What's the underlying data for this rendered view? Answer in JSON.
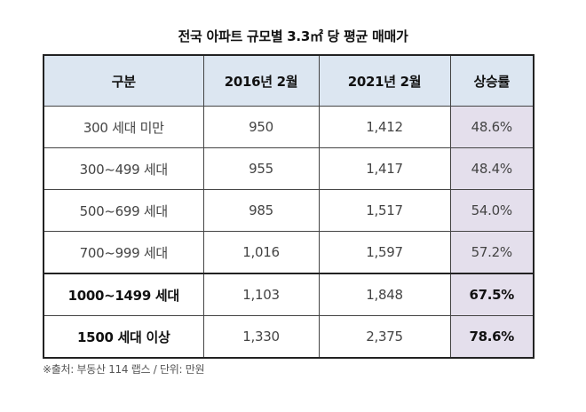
{
  "title": "전국 아파트 규모별 3.3㎡ 당 평균 매매가",
  "table": {
    "headers": [
      "구분",
      "2016년 2월",
      "2021년 2월",
      "상승률"
    ],
    "rows": [
      {
        "category": "300 세대 미만",
        "feb2016": "950",
        "feb2021": "1,412",
        "rate": "48.6%",
        "bold": false
      },
      {
        "category": "300~499 세대",
        "feb2016": "955",
        "feb2021": "1,417",
        "rate": "48.4%",
        "bold": false
      },
      {
        "category": "500~699 세대",
        "feb2016": "985",
        "feb2021": "1,517",
        "rate": "54.0%",
        "bold": false
      },
      {
        "category": "700~999 세대",
        "feb2016": "1,016",
        "feb2021": "1,597",
        "rate": "57.2%",
        "bold": false
      },
      {
        "category": "1000~1499 세대",
        "feb2016": "1,103",
        "feb2021": "1,848",
        "rate": "67.5%",
        "bold": true
      },
      {
        "category": "1500 세대 이상",
        "feb2016": "1,330",
        "feb2021": "2,375",
        "rate": "78.6%",
        "bold": true
      }
    ]
  },
  "footnote": "※출처: 부동산 114 랩스 / 단위: 만원",
  "colors": {
    "header_bg": "#dce6f1",
    "rate_bg": "#e4dfec"
  }
}
